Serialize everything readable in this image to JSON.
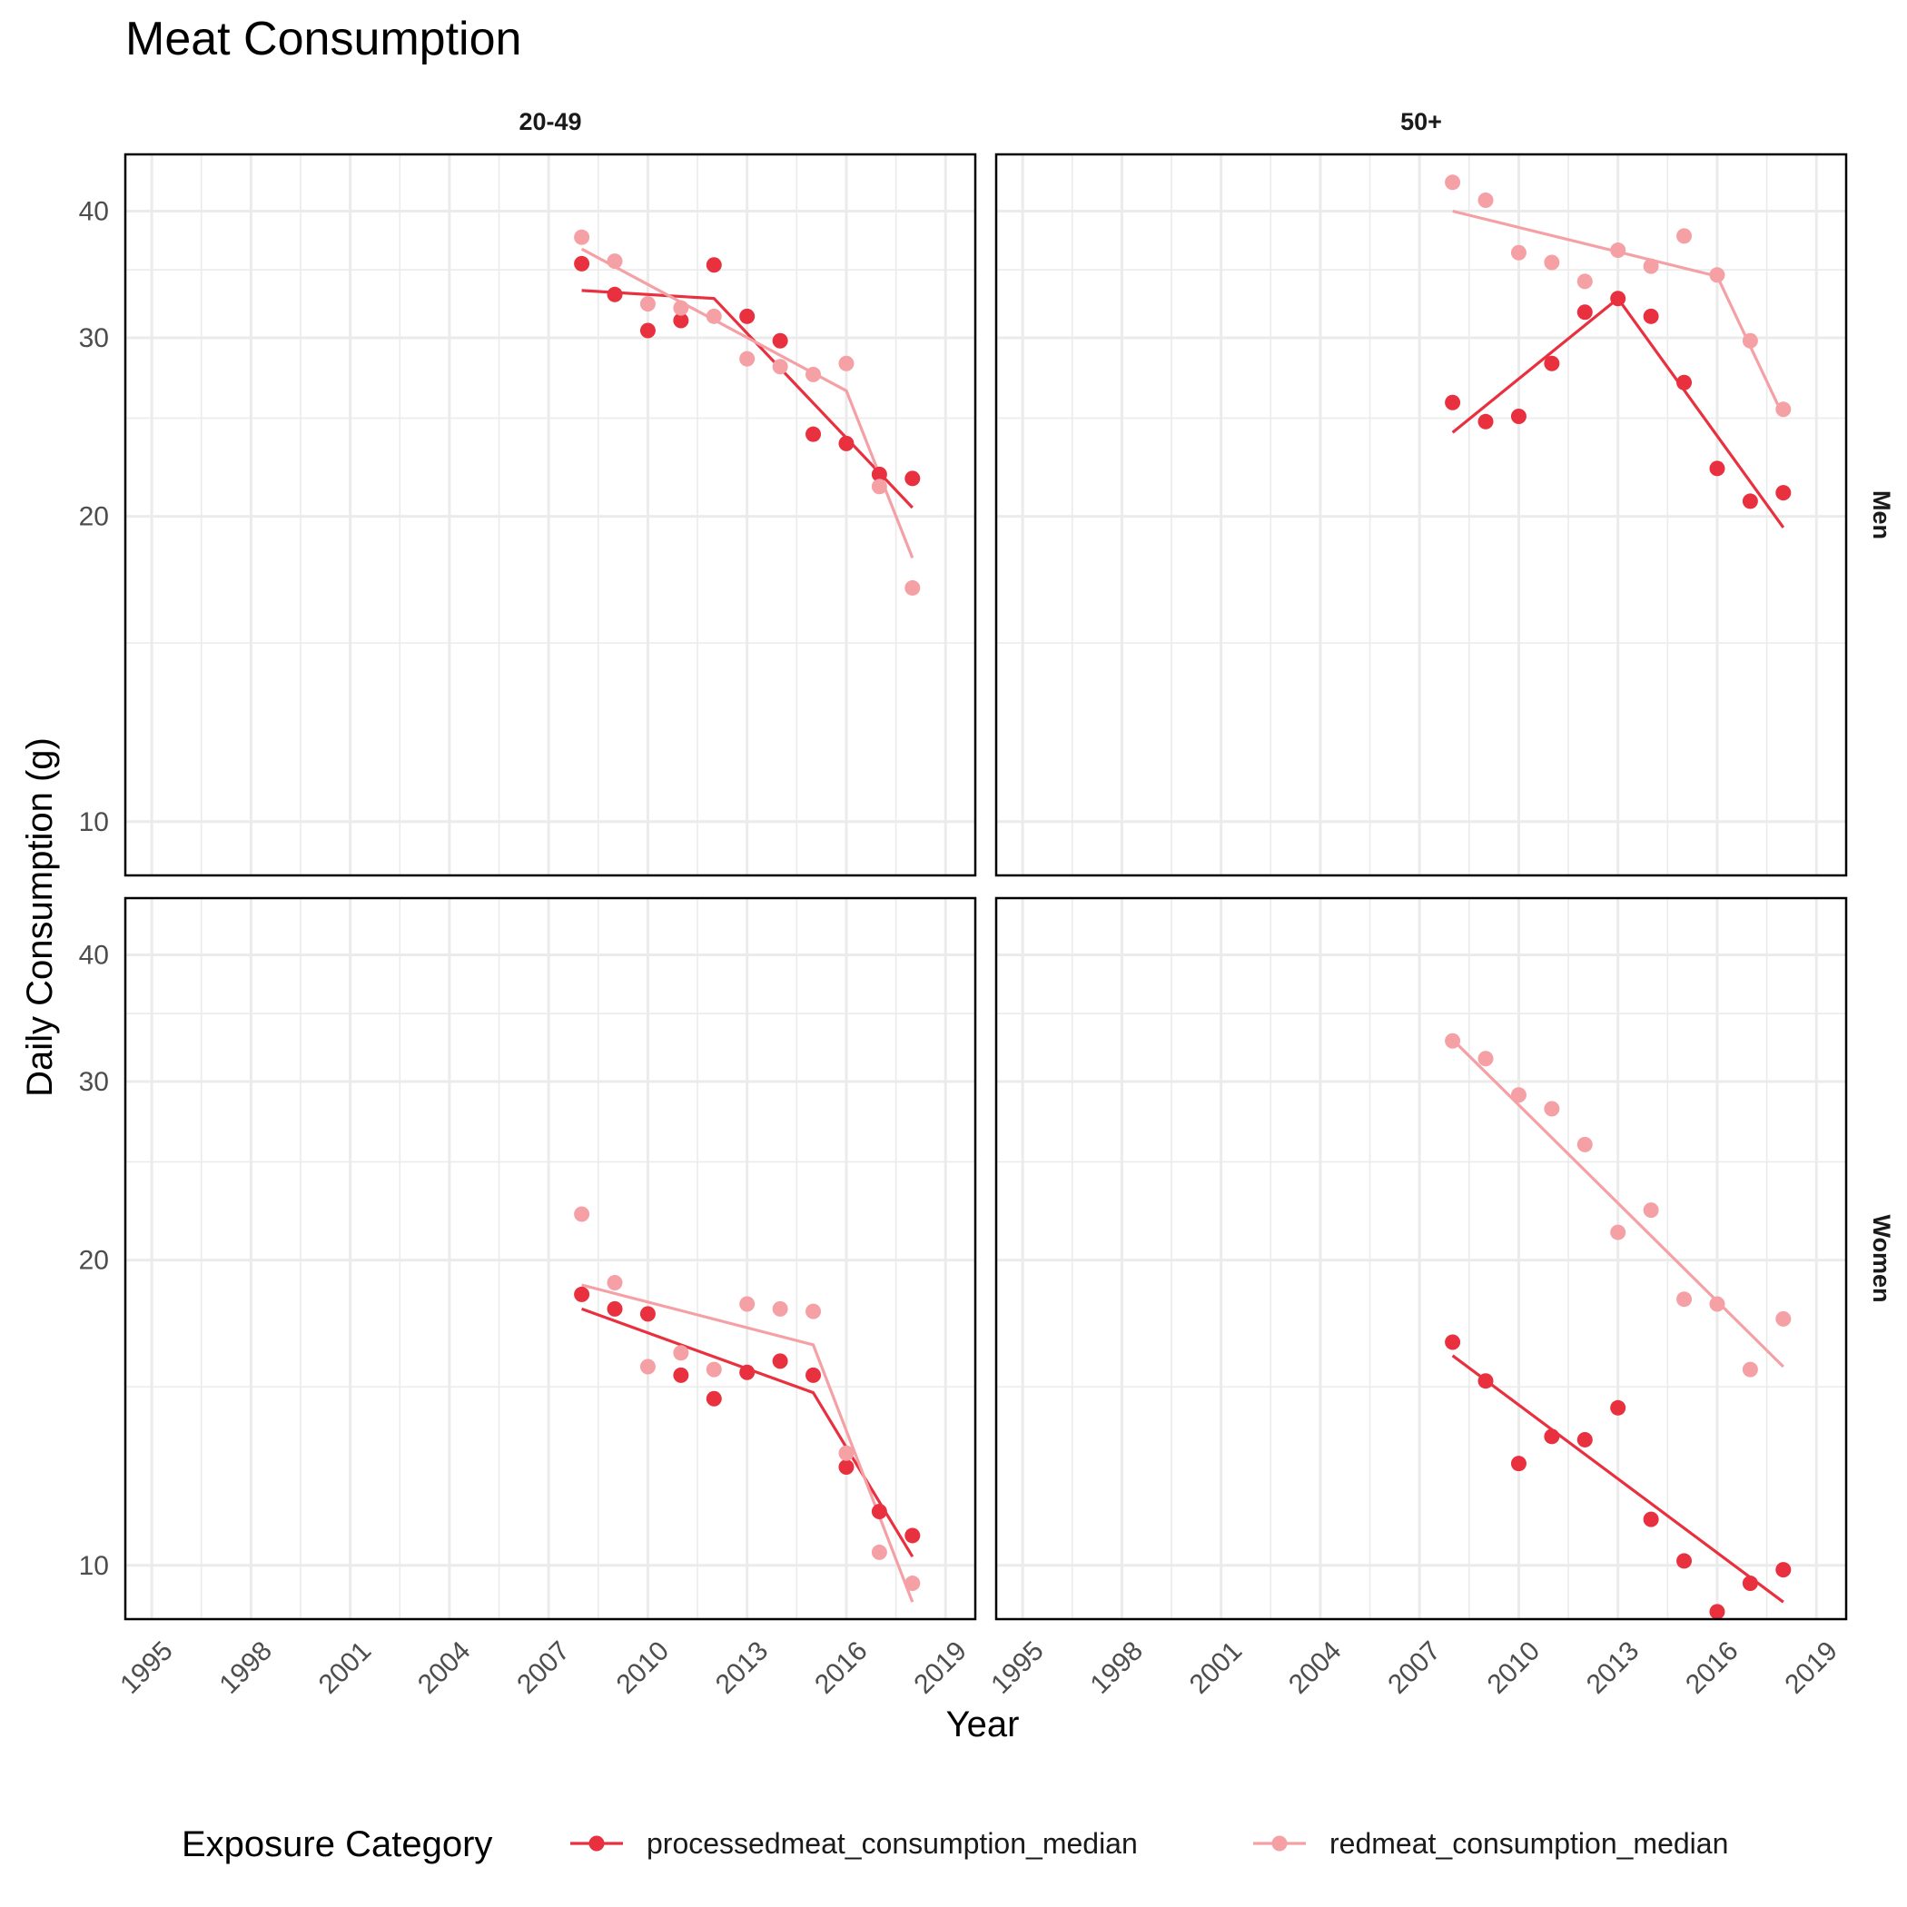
{
  "chart_data": {
    "type": "scatter",
    "title": "Meat Consumption",
    "xlabel": "Year",
    "ylabel": "Daily Consumption (g)",
    "y_scale": "log",
    "xlim": [
      1994.2,
      2019.9
    ],
    "ylim": [
      8.85,
      45.5
    ],
    "x_ticks": [
      1995,
      1998,
      2001,
      2004,
      2007,
      2010,
      2013,
      2016,
      2019
    ],
    "y_ticks": [
      10,
      20,
      30,
      40
    ],
    "grid": true,
    "legend": {
      "title": "Exposure Category",
      "position": "bottom",
      "entries": [
        "processedmeat_consumption_median",
        "redmeat_consumption_median"
      ]
    },
    "colors": {
      "processedmeat_consumption_median": "#e8303f",
      "redmeat_consumption_median": "#f5a0a5"
    },
    "col_facets": [
      "20-49",
      "50+"
    ],
    "row_facets": [
      "Men",
      "Women"
    ],
    "panels": [
      {
        "col": "20-49",
        "row": "Men",
        "series": [
          {
            "name": "processedmeat_consumption_median",
            "x": [
              2008,
              2009,
              2010,
              2011,
              2012,
              2013,
              2014,
              2015,
              2016,
              2017,
              2018
            ],
            "y": [
              35.5,
              33.1,
              30.5,
              31.2,
              35.4,
              31.5,
              29.8,
              24.1,
              23.6,
              22.0,
              21.8
            ],
            "line_x": [
              2008,
              2012,
              2018
            ],
            "line_y": [
              33.4,
              32.8,
              20.4
            ]
          },
          {
            "name": "redmeat_consumption_median",
            "x": [
              2008,
              2009,
              2010,
              2011,
              2012,
              2013,
              2014,
              2015,
              2016,
              2017,
              2018
            ],
            "y": [
              37.7,
              35.7,
              32.4,
              32.1,
              31.5,
              28.6,
              28.1,
              27.6,
              28.3,
              21.4,
              17.0
            ],
            "line_x": [
              2008,
              2016,
              2018
            ],
            "line_y": [
              36.7,
              26.6,
              18.2
            ]
          }
        ]
      },
      {
        "col": "50+",
        "row": "Men",
        "series": [
          {
            "name": "processedmeat_consumption_median",
            "x": [
              2008,
              2009,
              2010,
              2011,
              2012,
              2013,
              2014,
              2015,
              2016,
              2017,
              2018
            ],
            "y": [
              25.9,
              24.8,
              25.1,
              28.3,
              31.8,
              32.8,
              31.5,
              27.1,
              22.3,
              20.7,
              21.1
            ],
            "line_x": [
              2008,
              2013,
              2018
            ],
            "line_y": [
              24.2,
              32.8,
              19.5
            ]
          },
          {
            "name": "redmeat_consumption_median",
            "x": [
              2008,
              2009,
              2010,
              2011,
              2012,
              2013,
              2014,
              2015,
              2016,
              2017,
              2018
            ],
            "y": [
              42.7,
              41.0,
              36.4,
              35.6,
              34.1,
              36.6,
              35.3,
              37.8,
              34.6,
              29.8,
              25.5
            ],
            "line_x": [
              2008,
              2016,
              2018
            ],
            "line_y": [
              40.0,
              34.5,
              25.1
            ]
          }
        ]
      },
      {
        "col": "20-49",
        "row": "Women",
        "series": [
          {
            "name": "processedmeat_consumption_median",
            "x": [
              2008,
              2009,
              2010,
              2011,
              2012,
              2013,
              2014,
              2015,
              2016,
              2017,
              2018
            ],
            "y": [
              18.5,
              17.9,
              17.7,
              15.4,
              14.6,
              15.5,
              15.9,
              15.4,
              12.5,
              11.3,
              10.7
            ],
            "line_x": [
              2008,
              2015,
              2018
            ],
            "line_y": [
              17.9,
              14.8,
              10.2
            ]
          },
          {
            "name": "redmeat_consumption_median",
            "x": [
              2008,
              2009,
              2010,
              2011,
              2012,
              2013,
              2014,
              2015,
              2016,
              2017,
              2018
            ],
            "y": [
              22.2,
              19.0,
              15.7,
              16.2,
              15.6,
              18.1,
              17.9,
              17.8,
              12.9,
              10.3,
              9.6
            ],
            "line_x": [
              2008,
              2015,
              2018
            ],
            "line_y": [
              18.9,
              16.5,
              9.2
            ]
          }
        ]
      },
      {
        "col": "50+",
        "row": "Women",
        "series": [
          {
            "name": "processedmeat_consumption_median",
            "x": [
              2008,
              2009,
              2010,
              2011,
              2012,
              2013,
              2014,
              2015,
              2016,
              2017,
              2018
            ],
            "y": [
              16.6,
              15.2,
              12.6,
              13.4,
              13.3,
              14.3,
              11.1,
              10.1,
              9.0,
              9.6,
              9.9
            ],
            "line_x": [
              2008,
              2018
            ],
            "line_y": [
              16.1,
              9.2
            ]
          },
          {
            "name": "redmeat_consumption_median",
            "x": [
              2008,
              2009,
              2010,
              2011,
              2012,
              2013,
              2014,
              2015,
              2016,
              2017,
              2018
            ],
            "y": [
              32.9,
              31.6,
              29.1,
              28.2,
              26.0,
              21.3,
              22.4,
              18.3,
              18.1,
              15.6,
              17.5
            ],
            "line_x": [
              2008,
              2018
            ],
            "line_y": [
              33.0,
              15.7
            ]
          }
        ]
      }
    ]
  }
}
